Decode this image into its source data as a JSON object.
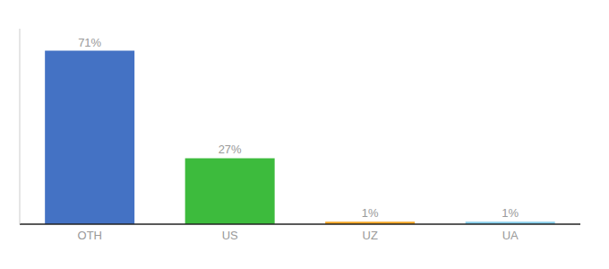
{
  "chart_data": {
    "type": "bar",
    "categories": [
      "OTH",
      "US",
      "UZ",
      "UA"
    ],
    "values": [
      71,
      27,
      1,
      1
    ],
    "value_labels": [
      "71%",
      "27%",
      "1%",
      "1%"
    ],
    "colors": [
      "#4472c4",
      "#3dbb3d",
      "#f5a623",
      "#87ceeb"
    ],
    "ylim": [
      0,
      80
    ],
    "data_labels": true,
    "tick_labels": "x",
    "grid": false
  }
}
